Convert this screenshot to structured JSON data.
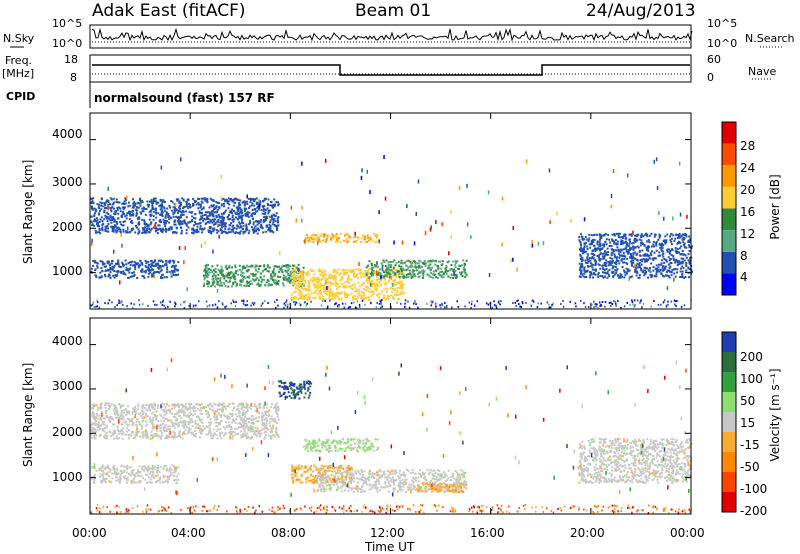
{
  "header": {
    "site": "Adak East (fitACF)",
    "beam": "Beam 01",
    "date": "24/Aug/2013"
  },
  "panels": {
    "nsky_label": "N.Sky",
    "nsearch_label": "N.Search",
    "nsky_ticks": [
      "10^5",
      "10^0"
    ],
    "nsearch_ticks": [
      "10^5",
      "10^0"
    ],
    "freq_label": "Freq.",
    "freq_unit": "[MHz]",
    "freq_ticks": [
      "18",
      "8"
    ],
    "nave_label": "Nave",
    "nave_ticks": [
      "60",
      "0"
    ],
    "cpid_label": "CPID",
    "cpid_text": "normalsound (fast) 157 RF"
  },
  "axes": {
    "xlabel": "Time UT",
    "x_ticks": [
      "00:00",
      "04:00",
      "08:00",
      "12:00",
      "16:00",
      "20:00",
      "00:00"
    ],
    "ylabel": "Slant Range [km]",
    "y_ticks": [
      "4000",
      "3000",
      "2000",
      "1000"
    ]
  },
  "colorbars": {
    "power": {
      "label": "Power [dB]",
      "ticks": [
        "28",
        "24",
        "20",
        "16",
        "12",
        "8",
        "4"
      ],
      "colors": [
        "#e00000",
        "#ff4a00",
        "#ff9900",
        "#ffcc33",
        "#2f8a3e",
        "#55aa80",
        "#2050b0",
        "#0000ff"
      ]
    },
    "velocity": {
      "label": "Velocity [m s⁻¹]",
      "ticks": [
        "200",
        "100",
        "50",
        "15",
        "-15",
        "-50",
        "-100",
        "-200"
      ],
      "colors": [
        "#1f3fb0",
        "#2a6f3c",
        "#35a040",
        "#8fe070",
        "#c8c8c8",
        "#ffaa33",
        "#ff8800",
        "#ff4400",
        "#e00000"
      ]
    }
  },
  "chart_data": [
    {
      "type": "heatmap",
      "title": "",
      "xlabel": "Time UT",
      "ylabel": "Slant Range [km]",
      "xlim": [
        "00:00",
        "24:00"
      ],
      "ylim": [
        180,
        4600
      ],
      "colorbar": "Power [dB]",
      "clim": [
        0,
        32
      ],
      "regions": [
        {
          "t": [
            0.0,
            7.5
          ],
          "range": [
            1900,
            2700
          ],
          "value": 6
        },
        {
          "t": [
            0.0,
            3.5
          ],
          "range": [
            900,
            1300
          ],
          "value": 6
        },
        {
          "t": [
            4.5,
            8.5
          ],
          "range": [
            700,
            1200
          ],
          "value": 12
        },
        {
          "t": [
            8.0,
            12.5
          ],
          "range": [
            400,
            1100
          ],
          "value": 18
        },
        {
          "t": [
            8.5,
            11.5
          ],
          "range": [
            1700,
            1900
          ],
          "value": 20
        },
        {
          "t": [
            11.0,
            15.0
          ],
          "range": [
            900,
            1300
          ],
          "value": 12
        },
        {
          "t": [
            19.5,
            24.0
          ],
          "range": [
            900,
            1900
          ],
          "value": 6
        }
      ]
    },
    {
      "type": "heatmap",
      "title": "",
      "xlabel": "Time UT",
      "ylabel": "Slant Range [km]",
      "xlim": [
        "00:00",
        "24:00"
      ],
      "ylim": [
        180,
        4600
      ],
      "colorbar": "Velocity [m s⁻¹]",
      "clim": [
        -250,
        250
      ],
      "regions": [
        {
          "t": [
            0.0,
            7.5
          ],
          "range": [
            1900,
            2700
          ],
          "value": 0
        },
        {
          "t": [
            0.0,
            3.5
          ],
          "range": [
            900,
            1300
          ],
          "value": 0
        },
        {
          "t": [
            7.5,
            8.8
          ],
          "range": [
            2800,
            3200
          ],
          "value": 200
        },
        {
          "t": [
            8.0,
            10.5
          ],
          "range": [
            900,
            1300
          ],
          "value": -60
        },
        {
          "t": [
            8.5,
            11.5
          ],
          "range": [
            1600,
            1900
          ],
          "value": 40
        },
        {
          "t": [
            9.0,
            15.0
          ],
          "range": [
            700,
            1200
          ],
          "value": 0
        },
        {
          "t": [
            13.0,
            15.0
          ],
          "range": [
            700,
            900
          ],
          "value": -60
        },
        {
          "t": [
            19.5,
            24.0
          ],
          "range": [
            900,
            1900
          ],
          "value": 0
        }
      ]
    }
  ]
}
